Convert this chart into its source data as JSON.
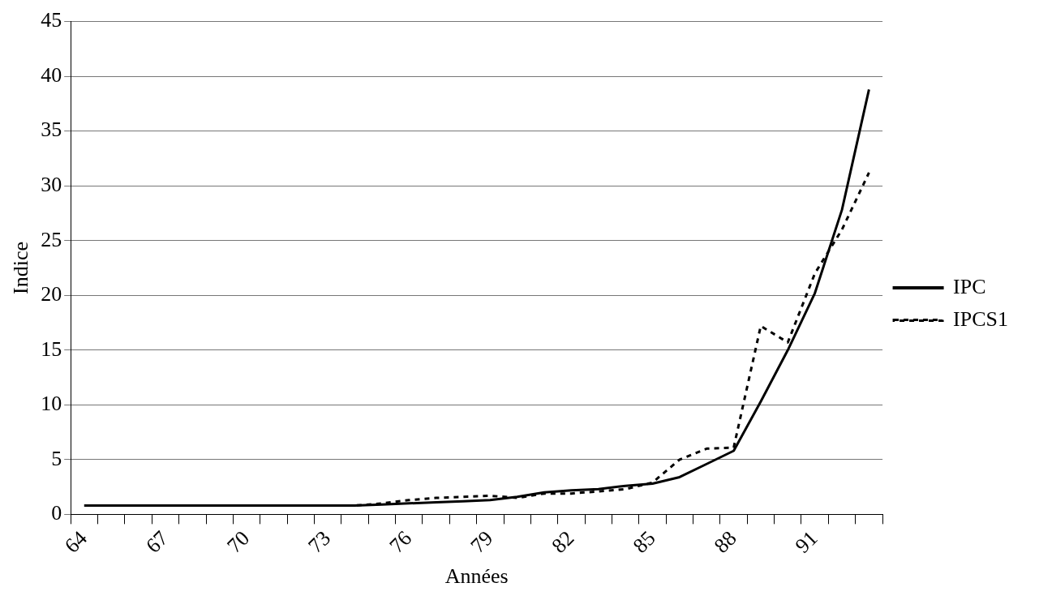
{
  "chart_data": {
    "type": "line",
    "xlabel": "Années",
    "ylabel": "Indice",
    "categories": [
      "64",
      null,
      null,
      "67",
      null,
      null,
      "70",
      null,
      null,
      "73",
      null,
      null,
      "76",
      null,
      null,
      "79",
      null,
      null,
      "82",
      null,
      null,
      "85",
      null,
      null,
      "88",
      null,
      null,
      "91",
      null,
      null
    ],
    "series": [
      {
        "name": "IPC",
        "color": "#000000",
        "line_style": "solid",
        "values": [
          0.8,
          0.8,
          0.8,
          0.8,
          0.8,
          0.8,
          0.8,
          0.8,
          0.8,
          0.8,
          0.8,
          0.9,
          1.0,
          1.1,
          1.2,
          1.3,
          1.6,
          2.0,
          2.2,
          2.3,
          2.6,
          2.8,
          3.4,
          4.6,
          5.8,
          10.3,
          15.0,
          20.2,
          27.8,
          38.8
        ]
      },
      {
        "name": "IPCS1",
        "color": "#000000",
        "line_style": "dashed",
        "values": [
          0.8,
          0.8,
          0.8,
          0.8,
          0.8,
          0.8,
          0.8,
          0.8,
          0.8,
          0.8,
          0.8,
          1.0,
          1.3,
          1.5,
          1.6,
          1.7,
          1.5,
          1.9,
          1.9,
          2.1,
          2.3,
          2.9,
          5.0,
          6.0,
          6.1,
          17.2,
          15.7,
          22.0,
          26.0,
          31.2
        ]
      }
    ],
    "ylim": [
      0,
      45
    ],
    "yticks": [
      0,
      5,
      10,
      15,
      20,
      25,
      30,
      35,
      40,
      45
    ],
    "grid": "y",
    "legend": "right",
    "marker": "none"
  }
}
